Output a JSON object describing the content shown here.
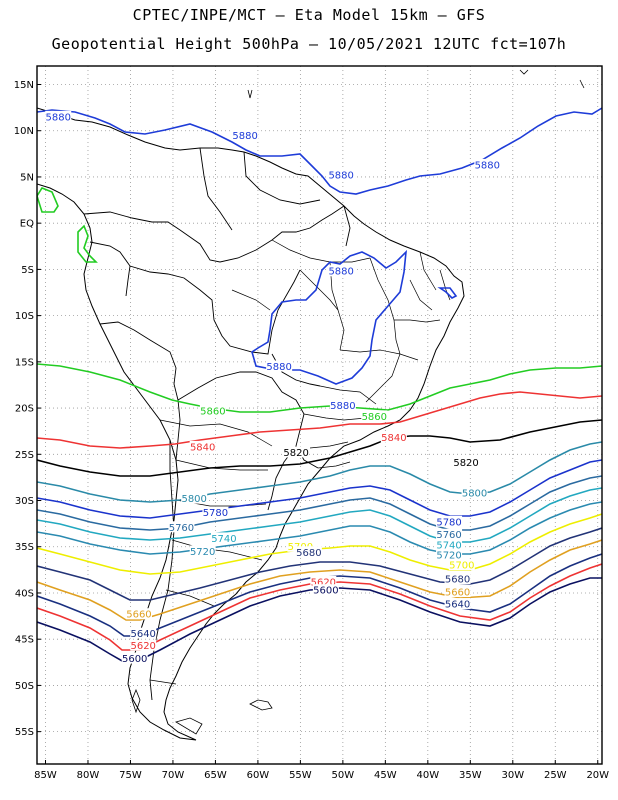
{
  "title": {
    "line1": "CPTEC/INPE/MCT –  Eta Model 15km – GFS",
    "line2": "Geopotential Height 500hPa – 10/05/2021 12UTC fct=107h"
  },
  "axes": {
    "lat_labels": [
      "15N",
      "10N",
      "5N",
      "EQ",
      "5S",
      "10S",
      "15S",
      "20S",
      "25S",
      "30S",
      "35S",
      "40S",
      "45S",
      "50S",
      "55S"
    ],
    "lon_labels": [
      "85W",
      "80W",
      "75W",
      "70W",
      "65W",
      "60W",
      "55W",
      "50W",
      "45W",
      "40W",
      "35W",
      "30W",
      "25W",
      "20W"
    ]
  },
  "map": {
    "region": "South America",
    "lon_range": [
      -86,
      -19.5
    ],
    "lat_range": [
      17,
      -58.5
    ],
    "grid": "dotted"
  },
  "colors": {
    "5880": "#1e3cd8",
    "5860": "#22cc22",
    "5840": "#ee3333",
    "5820": "#000000",
    "5800": "#2a8aa8",
    "5780": "#1a33cc",
    "5760": "#2a6aa0",
    "5740": "#22a8c0",
    "5720": "#2a8ab0",
    "5700": "#eeee00",
    "5680": "#223377",
    "5660": "#e0a020",
    "5640": "#1a3080",
    "5620": "#ee3333",
    "5600": "#0a1060"
  },
  "contour_labels": [
    {
      "text": "5880",
      "lon": -83.5,
      "lat": 11.5,
      "level": "5880"
    },
    {
      "text": "5880",
      "lon": -61.5,
      "lat": 9.5,
      "level": "5880"
    },
    {
      "text": "5880",
      "lon": -50.2,
      "lat": 5.2,
      "level": "5880"
    },
    {
      "text": "5880",
      "lon": -33,
      "lat": 6.3,
      "level": "5880"
    },
    {
      "text": "5880",
      "lon": -50.2,
      "lat": -5.2,
      "level": "5880"
    },
    {
      "text": "5880",
      "lon": -57.5,
      "lat": -15.5,
      "level": "5880"
    },
    {
      "text": "5880",
      "lon": -50,
      "lat": -19.7,
      "level": "5880"
    },
    {
      "text": "5860",
      "lon": -65.3,
      "lat": -20.3,
      "level": "5860"
    },
    {
      "text": "5860",
      "lon": -46.3,
      "lat": -20.9,
      "level": "5860"
    },
    {
      "text": "5840",
      "lon": -66.5,
      "lat": -24.2,
      "level": "5840"
    },
    {
      "text": "5840",
      "lon": -44,
      "lat": -23.2,
      "level": "5840"
    },
    {
      "text": "5820",
      "lon": -55.5,
      "lat": -24.8,
      "level": "5820"
    },
    {
      "text": "5820",
      "lon": -35.5,
      "lat": -25.9,
      "level": "5820"
    },
    {
      "text": "5800",
      "lon": -67.5,
      "lat": -29.8,
      "level": "5800"
    },
    {
      "text": "5800",
      "lon": -34.5,
      "lat": -29.2,
      "level": "5800"
    },
    {
      "text": "5780",
      "lon": -65,
      "lat": -31.3,
      "level": "5780"
    },
    {
      "text": "5780",
      "lon": -37.5,
      "lat": -32.3,
      "level": "5780"
    },
    {
      "text": "5760",
      "lon": -69,
      "lat": -32.9,
      "level": "5760"
    },
    {
      "text": "5760",
      "lon": -37.5,
      "lat": -33.7,
      "level": "5760"
    },
    {
      "text": "5740",
      "lon": -64,
      "lat": -34.1,
      "level": "5740"
    },
    {
      "text": "5740",
      "lon": -37.5,
      "lat": -34.8,
      "level": "5740"
    },
    {
      "text": "5720",
      "lon": -66.5,
      "lat": -35.5,
      "level": "5720"
    },
    {
      "text": "5720",
      "lon": -37.5,
      "lat": -35.9,
      "level": "5720"
    },
    {
      "text": "5700",
      "lon": -55,
      "lat": -35,
      "level": "5700"
    },
    {
      "text": "5700",
      "lon": -36,
      "lat": -37,
      "level": "5700"
    },
    {
      "text": "5680",
      "lon": -54,
      "lat": -35.6,
      "level": "5680"
    },
    {
      "text": "5680",
      "lon": -36.5,
      "lat": -38.5,
      "level": "5680"
    },
    {
      "text": "5660",
      "lon": -74,
      "lat": -42.3,
      "level": "5660"
    },
    {
      "text": "5660",
      "lon": -36.5,
      "lat": -39.9,
      "level": "5660"
    },
    {
      "text": "5640",
      "lon": -73.5,
      "lat": -44.4,
      "level": "5640"
    },
    {
      "text": "5640",
      "lon": -36.5,
      "lat": -41.2,
      "level": "5640"
    },
    {
      "text": "5620",
      "lon": -73.5,
      "lat": -45.7,
      "level": "5620"
    },
    {
      "text": "5620",
      "lon": -52.3,
      "lat": -38.8,
      "level": "5620"
    },
    {
      "text": "5600",
      "lon": -74.5,
      "lat": -47.1,
      "level": "5600"
    },
    {
      "text": "5600",
      "lon": -52,
      "lat": -39.7,
      "level": "5600"
    }
  ]
}
